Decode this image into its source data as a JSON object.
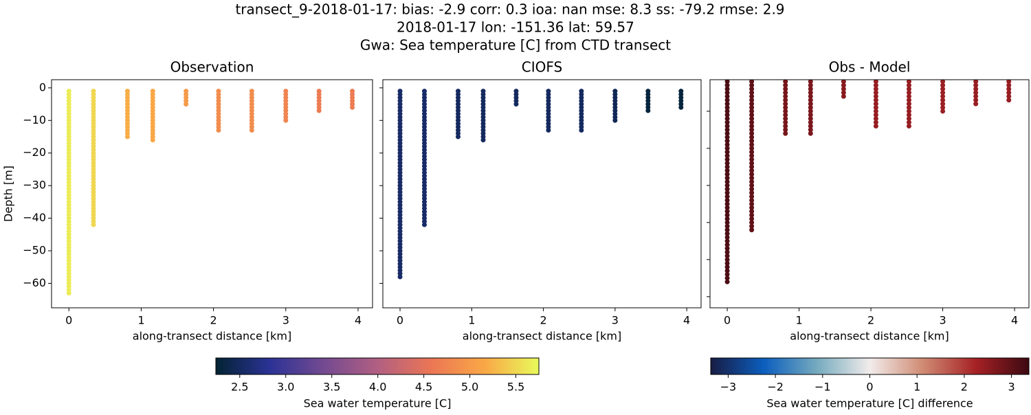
{
  "suptitle": [
    "transect_9-2018-01-17: bias: -2.9  corr: 0.3  ioa: nan  mse: 8.3  ss: -79.2  rmse: 2.9",
    "2018-01-17 lon: -151.36 lat: 59.57",
    "Gwa: Sea temperature [C] from CTD transect"
  ],
  "chart_data": [
    {
      "type": "scatter",
      "title": "Observation",
      "xlabel": "along-transect distance [km]",
      "ylabel": "Depth [m]",
      "xlim": [
        -0.24,
        4.2
      ],
      "ylim": [
        -67.5,
        2.5
      ],
      "xticks": [
        0,
        1,
        2,
        3,
        4
      ],
      "yticks": [
        0,
        {
          "value": -10,
          "label": "−10"
        },
        {
          "value": -20,
          "label": "−20"
        },
        {
          "value": -30,
          "label": "−30"
        },
        {
          "value": -40,
          "label": "−40"
        },
        {
          "value": -50,
          "label": "−50"
        },
        {
          "value": -60,
          "label": "−60"
        }
      ],
      "ytick_labels": true,
      "stations": [
        {
          "x": 0,
          "top": -1,
          "bottom": -64,
          "value": 5.65
        },
        {
          "x": 0.34,
          "top": -1,
          "bottom": -43,
          "value": 5.5
        },
        {
          "x": 0.81,
          "top": -1,
          "bottom": -16,
          "value": 5.2
        },
        {
          "x": 1.16,
          "top": -1,
          "bottom": -17,
          "value": 5.15
        },
        {
          "x": 1.62,
          "top": -1,
          "bottom": -6,
          "value": 5.0
        },
        {
          "x": 2.07,
          "top": -1,
          "bottom": -14,
          "value": 4.85
        },
        {
          "x": 2.53,
          "top": -1,
          "bottom": -14,
          "value": 4.85
        },
        {
          "x": 3.0,
          "top": -1,
          "bottom": -10,
          "value": 4.75
        },
        {
          "x": 3.46,
          "top": -1,
          "bottom": -8,
          "value": 4.65
        },
        {
          "x": 3.92,
          "top": -1,
          "bottom": -7,
          "value": 4.65
        }
      ]
    },
    {
      "type": "scatter",
      "title": "CIOFS",
      "xlabel": "along-transect distance [km]",
      "xlim": [
        -0.24,
        4.2
      ],
      "ylim": [
        -67.5,
        2.5
      ],
      "xticks": [
        0,
        1,
        2,
        3,
        4
      ],
      "yticks": [
        0,
        -10,
        -20,
        -30,
        -40,
        -50,
        -60
      ],
      "ytick_labels": false,
      "stations": [
        {
          "x": 0,
          "top": -1,
          "bottom": -58,
          "value": 2.55
        },
        {
          "x": 0.34,
          "top": -1,
          "bottom": -43,
          "value": 2.55
        },
        {
          "x": 0.81,
          "top": -1,
          "bottom": -16,
          "value": 2.5
        },
        {
          "x": 1.16,
          "top": -1,
          "bottom": -17,
          "value": 2.5
        },
        {
          "x": 1.62,
          "top": -1,
          "bottom": -6,
          "value": 2.5
        },
        {
          "x": 2.07,
          "top": -1,
          "bottom": -14,
          "value": 2.5
        },
        {
          "x": 2.53,
          "top": -1,
          "bottom": -14,
          "value": 2.5
        },
        {
          "x": 3.0,
          "top": -1,
          "bottom": -10,
          "value": 2.45
        },
        {
          "x": 3.46,
          "top": -1,
          "bottom": -8,
          "value": 2.3
        },
        {
          "x": 3.92,
          "top": -1,
          "bottom": -7,
          "value": 2.3
        }
      ]
    },
    {
      "type": "scatter",
      "title": "Obs - Model",
      "xlabel": "along-transect distance [km]",
      "xlim": [
        -0.24,
        4.2
      ],
      "ylim": [
        -63,
        -1.5
      ],
      "xticks": [
        0,
        1,
        2,
        3,
        4
      ],
      "yticks": [
        -10,
        -20,
        -30,
        -40,
        -50,
        -60
      ],
      "ytick_labels": false,
      "stations": [
        {
          "x": 0,
          "top": -1,
          "bottom": -57,
          "value": 3.2
        },
        {
          "x": 0.34,
          "top": -1,
          "bottom": -42.6,
          "value": 3.0
        },
        {
          "x": 0.81,
          "top": -1,
          "bottom": -16.1,
          "value": 2.75
        },
        {
          "x": 1.16,
          "top": -1,
          "bottom": -17,
          "value": 2.7
        },
        {
          "x": 1.62,
          "top": -1,
          "bottom": -6.3,
          "value": 2.55
        },
        {
          "x": 2.07,
          "top": -1,
          "bottom": -14.3,
          "value": 2.4
        },
        {
          "x": 2.53,
          "top": -1,
          "bottom": -14.3,
          "value": 2.4
        },
        {
          "x": 3.0,
          "top": -1,
          "bottom": -10.2,
          "value": 2.35
        },
        {
          "x": 3.46,
          "top": -1,
          "bottom": -8.1,
          "value": 2.4
        },
        {
          "x": 3.92,
          "top": -1,
          "bottom": -7.4,
          "value": 2.4
        }
      ]
    },
    {
      "type": "colorbar",
      "label": "Sea water temperature [C]",
      "clim": [
        2.24,
        5.75
      ],
      "ticks": [
        2.5,
        {
          "value": 3,
          "label": "3.0"
        },
        3.5,
        {
          "value": 4,
          "label": "4.0"
        },
        4.5,
        {
          "value": 5,
          "label": "5.0"
        },
        5.5
      ],
      "colors": [
        "#032333",
        "#2b3295",
        "#734a91",
        "#b15f82",
        "#eb7655",
        "#f9a846",
        "#e8fa5b"
      ]
    },
    {
      "type": "colorbar",
      "label": "Sea water temperature [C] difference",
      "clim": [
        -3.37,
        3.37
      ],
      "ticks": [
        {
          "value": -3,
          "label": "−3"
        },
        {
          "value": -2,
          "label": "−2"
        },
        {
          "value": -1,
          "label": "−1"
        },
        0,
        1,
        2,
        3
      ],
      "colors": [
        "#181c43",
        "#0c5ebe",
        "#75aabe",
        "#f1eceb",
        "#d08b73",
        "#a52125",
        "#3c0912"
      ]
    }
  ]
}
